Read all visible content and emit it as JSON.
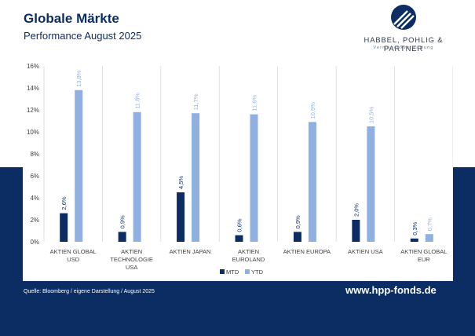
{
  "header": {
    "title": "Globale Märkte",
    "subtitle": "Performance August 2025"
  },
  "logo": {
    "name": "HABBEL, POHLIG & PARTNER",
    "tagline": "Vermögensverwaltung",
    "icon": "swoosh-logo-icon"
  },
  "footer": {
    "source": "Quelle: Bloomberg / eigene Darstellung / August 2025",
    "website": "www.hpp-fonds.de"
  },
  "colors": {
    "navy": "#0b2d63",
    "mtd": "#0b2d63",
    "ytd": "#8fb0e0",
    "grid": "#d9d9d9"
  },
  "chart_data": {
    "type": "bar",
    "title": "",
    "xlabel": "",
    "ylabel": "",
    "categories": [
      [
        "AKTIEN GLOBAL",
        "USD"
      ],
      [
        "AKTIEN",
        "TECHNOLOGIE",
        "USA"
      ],
      [
        "AKTIEN JAPAN"
      ],
      [
        "AKTIEN",
        "EUROLAND"
      ],
      [
        "AKTIEN EUROPA"
      ],
      [
        "AKTIEN USA"
      ],
      [
        "AKTIEN GLOBAL",
        "EUR"
      ]
    ],
    "series": [
      {
        "name": "MTD",
        "values": [
          2.6,
          0.9,
          4.5,
          0.6,
          0.9,
          2.0,
          0.3
        ],
        "labels": [
          "2,6%",
          "0,9%",
          "4,5%",
          "0,6%",
          "0,9%",
          "2,0%",
          "0,3%"
        ]
      },
      {
        "name": "YTD",
        "values": [
          13.8,
          11.8,
          11.7,
          11.6,
          10.9,
          10.5,
          0.7
        ],
        "labels": [
          "13,8%",
          "11,8%",
          "11,7%",
          "11,6%",
          "10,9%",
          "10,5%",
          "0,7%"
        ]
      }
    ],
    "ylim": [
      0,
      16
    ],
    "yticks": [
      "0%",
      "2%",
      "4%",
      "6%",
      "8%",
      "10%",
      "12%",
      "14%",
      "16%"
    ],
    "grid": "vertical separators between categories",
    "legend": "bottom-center"
  }
}
